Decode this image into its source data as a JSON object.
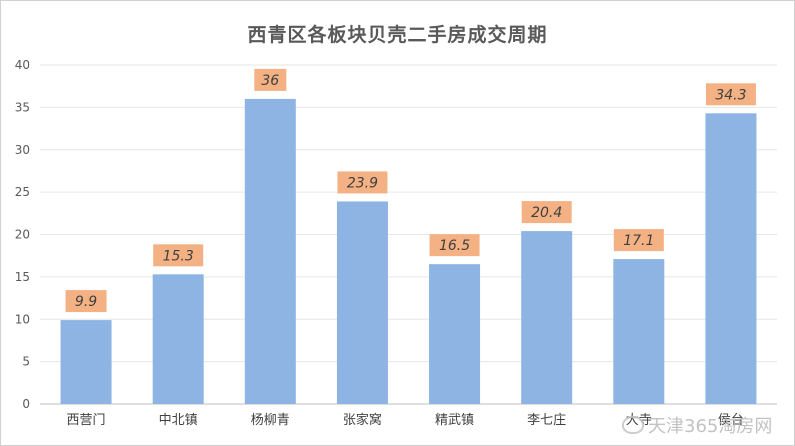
{
  "chart_data": {
    "type": "bar",
    "title": "西青区各板块贝壳二手房成交周期",
    "categories": [
      "西营门",
      "中北镇",
      "杨柳青",
      "张家窝",
      "精武镇",
      "李七庄",
      "大寺",
      "侯台"
    ],
    "values": [
      9.9,
      15.3,
      36,
      23.9,
      16.5,
      20.4,
      17.1,
      34.3
    ],
    "value_labels": [
      "9.9",
      "15.3",
      "36",
      "23.9",
      "16.5",
      "20.4",
      "17.1",
      "34.3"
    ],
    "ylim": [
      0,
      40
    ],
    "yticks": [
      0,
      5,
      10,
      15,
      20,
      25,
      30,
      35,
      40
    ],
    "xlabel": "",
    "ylabel": "",
    "grid": true,
    "legend": "none",
    "bar_color": "#8db4e2",
    "label_bg_color": "#f4b183"
  },
  "watermark": {
    "text": "天津365淘房网"
  }
}
